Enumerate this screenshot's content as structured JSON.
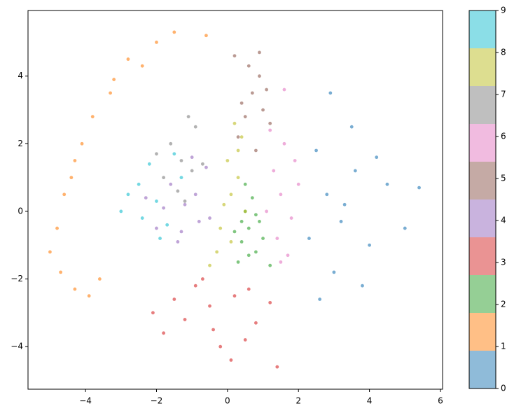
{
  "chart_data": {
    "type": "scatter",
    "xlim": [
      -5.62,
      6.06
    ],
    "ylim": [
      -5.26,
      5.94
    ],
    "xticks": [
      {
        "value": -4,
        "label": "−4"
      },
      {
        "value": -2,
        "label": "−2"
      },
      0,
      2,
      4,
      6
    ],
    "yticks": [
      {
        "value": -4,
        "label": "−4"
      },
      {
        "value": -2,
        "label": "−2"
      },
      0,
      2,
      4
    ],
    "colorbar": {
      "lim": [
        0,
        9
      ],
      "ticks": [
        0,
        1,
        2,
        3,
        4,
        5,
        6,
        7,
        8,
        9
      ],
      "colors": [
        "#1f77b4",
        "#ff7f0e",
        "#2ca02c",
        "#d62728",
        "#9467bd",
        "#8c564b",
        "#e377c2",
        "#7f7f7f",
        "#bcbd22",
        "#17becf"
      ]
    },
    "series": [
      {
        "color": "#1f77b4",
        "x": [
          2.8,
          3.2,
          3.6,
          4.0,
          2.5,
          3.0,
          3.5,
          4.5,
          5.0,
          2.3,
          3.8,
          2.9,
          4.2,
          3.3,
          5.4,
          2.6
        ],
        "values": [
          0.5,
          -0.3,
          1.2,
          -1.0,
          1.8,
          -1.8,
          2.5,
          0.8,
          -0.5,
          -0.8,
          -2.2,
          3.5,
          1.6,
          0.2,
          0.7,
          -2.6
        ]
      },
      {
        "color": "#ff7f0e",
        "x": [
          -2.8,
          -2.0,
          -1.5,
          -0.6,
          -3.3,
          -3.8,
          -4.1,
          -4.3,
          -4.6,
          -4.8,
          -5.0,
          -4.7,
          -4.3,
          -3.9,
          -3.2,
          -2.4,
          -3.6,
          -4.4
        ],
        "values": [
          4.5,
          5.0,
          5.3,
          5.2,
          3.5,
          2.8,
          2.0,
          1.5,
          0.5,
          -0.5,
          -1.2,
          -1.8,
          -2.3,
          -2.5,
          3.9,
          4.3,
          -2.0,
          1.0
        ]
      },
      {
        "color": "#2ca02c",
        "x": [
          0.6,
          0.4,
          0.8,
          0.5,
          0.9,
          0.3,
          0.7,
          1.0,
          0.2,
          0.6,
          0.5,
          1.2,
          0.8,
          0.4
        ],
        "values": [
          -0.5,
          -0.9,
          -1.2,
          0.0,
          -0.3,
          -1.5,
          0.4,
          -0.8,
          -0.6,
          -1.3,
          0.8,
          -1.6,
          -0.1,
          -0.3
        ]
      },
      {
        "color": "#d62728",
        "x": [
          -0.5,
          -1.2,
          0.2,
          -1.8,
          0.8,
          -0.2,
          -0.9,
          0.5,
          1.2,
          -1.5,
          -0.4,
          0.1,
          -2.1,
          1.4,
          -0.7,
          0.6
        ],
        "values": [
          -2.8,
          -3.2,
          -2.5,
          -3.6,
          -3.3,
          -4.0,
          -2.2,
          -3.8,
          -2.7,
          -2.6,
          -3.5,
          -4.4,
          -3.0,
          -4.6,
          -2.0,
          -2.3
        ]
      },
      {
        "color": "#9467bd",
        "x": [
          -1.2,
          -0.8,
          -1.6,
          -2.0,
          -0.6,
          -1.4,
          -1.0,
          -2.3,
          -0.9,
          -1.8,
          -0.5,
          -1.3
        ],
        "values": [
          0.2,
          -0.3,
          0.8,
          -0.5,
          1.3,
          -0.9,
          1.6,
          0.4,
          0.5,
          0.1,
          -0.2,
          -0.6
        ]
      },
      {
        "color": "#8c564b",
        "x": [
          0.7,
          0.5,
          0.9,
          1.0,
          0.3,
          0.8,
          0.6,
          1.1,
          0.4,
          0.2,
          1.2,
          0.9
        ],
        "values": [
          3.5,
          2.8,
          4.0,
          3.0,
          2.2,
          1.8,
          4.3,
          3.6,
          3.2,
          4.6,
          2.6,
          4.7
        ]
      },
      {
        "color": "#e377c2",
        "x": [
          1.5,
          1.3,
          1.8,
          1.6,
          1.1,
          1.9,
          1.4,
          1.7,
          1.2,
          2.0,
          1.5,
          1.6
        ],
        "values": [
          0.5,
          1.2,
          -0.2,
          2.0,
          0.0,
          1.5,
          -0.8,
          -1.3,
          2.4,
          0.8,
          -1.5,
          3.6
        ]
      },
      {
        "color": "#7f7f7f",
        "x": [
          -1.3,
          -1.6,
          -1.0,
          -1.8,
          -0.9,
          -1.4,
          -1.1,
          -2.0,
          -1.2,
          -0.7
        ],
        "values": [
          1.5,
          2.0,
          1.2,
          1.0,
          2.5,
          0.6,
          2.8,
          1.7,
          0.3,
          1.4
        ]
      },
      {
        "color": "#bcbd22",
        "x": [
          0.1,
          0.0,
          0.3,
          -0.2,
          0.4,
          0.2,
          -0.3,
          0.5,
          0.1,
          -0.5,
          0.3,
          -0.1
        ],
        "values": [
          0.5,
          1.5,
          1.0,
          -0.5,
          2.2,
          2.6,
          -1.2,
          0.0,
          -0.9,
          -1.6,
          1.8,
          0.2
        ]
      },
      {
        "color": "#17becf",
        "x": [
          -2.0,
          -2.5,
          -1.7,
          -2.8,
          -1.5,
          -2.2,
          -3.0,
          -1.9,
          -2.4,
          -1.3
        ],
        "values": [
          0.3,
          0.8,
          -0.4,
          0.5,
          1.7,
          1.4,
          0.0,
          -0.8,
          -0.2,
          1.0
        ]
      }
    ]
  }
}
